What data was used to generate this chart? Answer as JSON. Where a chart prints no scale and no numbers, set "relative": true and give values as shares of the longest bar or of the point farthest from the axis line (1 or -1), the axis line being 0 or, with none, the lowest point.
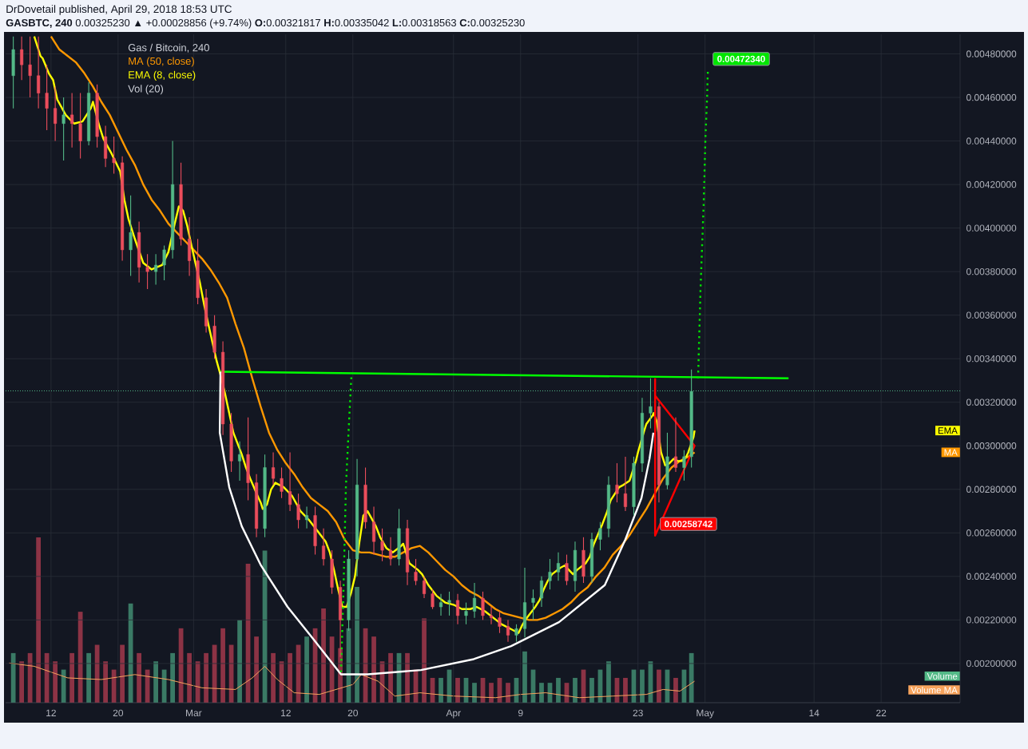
{
  "chart_data": [
    {
      "type": "candlestick",
      "title": "DrDovetail published, April 29, 2018 18:53 UTC",
      "subtitle": "**GASBTC, 240** 0.00325230 ▲ +0.00028856 (+9.74%) **O:**0.00321817 **H:**0.00335042 **L:**0.00318563 **C:**0.00325230",
      "legend_title": "Gas / Bitcoin, 240",
      "legend": "top left",
      "grid": true,
      "x": [
        "2018-02-07T12:00",
        "2018-02-08T12:00",
        "2018-02-09T12:00",
        "2018-02-10T12:00",
        "2018-02-11T12:00",
        "2018-02-12T12:00",
        "2018-02-13T12:00",
        "2018-02-14T12:00",
        "2018-02-15T12:00",
        "2018-02-16T12:00",
        "2018-02-17T12:00",
        "2018-02-18T12:00",
        "2018-02-19T12:00",
        "2018-02-20T12:00",
        "2018-02-21T12:00",
        "2018-02-22T12:00",
        "2018-02-23T12:00",
        "2018-02-24T12:00",
        "2018-02-25T12:00",
        "2018-02-26T12:00",
        "2018-02-27T12:00",
        "2018-02-28T12:00",
        "2018-03-01T12:00",
        "2018-03-02T12:00",
        "2018-03-03T12:00",
        "2018-03-04T12:00",
        "2018-03-05T12:00",
        "2018-03-06T12:00",
        "2018-03-07T12:00",
        "2018-03-08T12:00",
        "2018-03-09T12:00",
        "2018-03-10T12:00",
        "2018-03-11T12:00",
        "2018-03-12T12:00",
        "2018-03-13T12:00",
        "2018-03-14T12:00",
        "2018-03-15T12:00",
        "2018-03-16T12:00",
        "2018-03-17T12:00",
        "2018-03-18T12:00",
        "2018-03-19T12:00",
        "2018-03-20T12:00",
        "2018-03-21T12:00",
        "2018-03-22T12:00",
        "2018-03-23T12:00",
        "2018-03-24T12:00",
        "2018-03-25T12:00",
        "2018-03-26T12:00",
        "2018-03-27T12:00",
        "2018-03-28T12:00",
        "2018-03-29T12:00",
        "2018-03-30T12:00",
        "2018-03-31T12:00",
        "2018-04-01T12:00",
        "2018-04-02T12:00",
        "2018-04-03T12:00",
        "2018-04-04T12:00",
        "2018-04-05T12:00",
        "2018-04-06T12:00",
        "2018-04-07T12:00",
        "2018-04-08T12:00",
        "2018-04-09T12:00",
        "2018-04-10T12:00",
        "2018-04-11T12:00",
        "2018-04-12T12:00",
        "2018-04-13T12:00",
        "2018-04-14T12:00",
        "2018-04-15T12:00",
        "2018-04-16T12:00",
        "2018-04-17T12:00",
        "2018-04-18T12:00",
        "2018-04-19T12:00",
        "2018-04-20T12:00",
        "2018-04-21T12:00",
        "2018-04-22T12:00",
        "2018-04-23T12:00",
        "2018-04-24T12:00",
        "2018-04-25T12:00",
        "2018-04-26T12:00",
        "2018-04-27T12:00",
        "2018-04-28T12:00",
        "2018-04-29T09:00"
      ],
      "ohlc": [
        [
          0.0047,
          0.00488,
          0.00455,
          0.00482
        ],
        [
          0.00482,
          0.00488,
          0.00468,
          0.00475
        ],
        [
          0.00475,
          0.00488,
          0.0046,
          0.0047
        ],
        [
          0.0047,
          0.00488,
          0.00455,
          0.00462
        ],
        [
          0.00462,
          0.00475,
          0.00445,
          0.00455
        ],
        [
          0.00455,
          0.00465,
          0.0044,
          0.00448
        ],
        [
          0.00448,
          0.0046,
          0.00431,
          0.00452
        ],
        [
          0.00452,
          0.00462,
          0.00437,
          0.00448
        ],
        [
          0.00448,
          0.00462,
          0.00432,
          0.0044
        ],
        [
          0.0044,
          0.00467,
          0.00438,
          0.00462
        ],
        [
          0.00462,
          0.00466,
          0.00437,
          0.00442
        ],
        [
          0.00442,
          0.00447,
          0.00428,
          0.00432
        ],
        [
          0.00432,
          0.00442,
          0.00425,
          0.0043
        ],
        [
          0.0043,
          0.00433,
          0.00385,
          0.0039
        ],
        [
          0.0039,
          0.00415,
          0.00378,
          0.00398
        ],
        [
          0.00398,
          0.00403,
          0.00375,
          0.00382
        ],
        [
          0.00382,
          0.00388,
          0.00372,
          0.0038
        ],
        [
          0.0038,
          0.00388,
          0.00374,
          0.00383
        ],
        [
          0.00383,
          0.00392,
          0.00376,
          0.0039
        ],
        [
          0.0039,
          0.0044,
          0.00386,
          0.0042
        ],
        [
          0.0042,
          0.0043,
          0.00392,
          0.00395
        ],
        [
          0.00395,
          0.00405,
          0.00378,
          0.00385
        ],
        [
          0.00385,
          0.00395,
          0.00365,
          0.00368
        ],
        [
          0.00368,
          0.00372,
          0.00352,
          0.00355
        ],
        [
          0.00355,
          0.0036,
          0.0034,
          0.00343
        ],
        [
          0.00343,
          0.00348,
          0.00305,
          0.0031
        ],
        [
          0.0031,
          0.00315,
          0.00288,
          0.00293
        ],
        [
          0.00293,
          0.00302,
          0.00284,
          0.00296
        ],
        [
          0.00296,
          0.00313,
          0.00275,
          0.00283
        ],
        [
          0.00283,
          0.00287,
          0.00258,
          0.00262
        ],
        [
          0.00262,
          0.00296,
          0.00258,
          0.0029
        ],
        [
          0.0029,
          0.00297,
          0.00282,
          0.00285
        ],
        [
          0.00285,
          0.0029,
          0.00276,
          0.00279
        ],
        [
          0.00279,
          0.00297,
          0.0027,
          0.00273
        ],
        [
          0.00273,
          0.00278,
          0.00262,
          0.00266
        ],
        [
          0.00266,
          0.00272,
          0.00262,
          0.00268
        ],
        [
          0.00268,
          0.00272,
          0.0025,
          0.00254
        ],
        [
          0.00254,
          0.00262,
          0.00245,
          0.00248
        ],
        [
          0.00248,
          0.00252,
          0.00232,
          0.00235
        ],
        [
          0.00235,
          0.00238,
          0.00203,
          0.0022
        ],
        [
          0.0022,
          0.00252,
          0.00215,
          0.00248
        ],
        [
          0.00248,
          0.00294,
          0.0024,
          0.00282
        ],
        [
          0.00282,
          0.0029,
          0.00262,
          0.00265
        ],
        [
          0.00265,
          0.00272,
          0.0025,
          0.00256
        ],
        [
          0.00256,
          0.00262,
          0.00247,
          0.00252
        ],
        [
          0.00252,
          0.00258,
          0.00245,
          0.00248
        ],
        [
          0.00248,
          0.00271,
          0.00245,
          0.00262
        ],
        [
          0.00262,
          0.00266,
          0.00236,
          0.00242
        ],
        [
          0.00242,
          0.00248,
          0.00236,
          0.00238
        ],
        [
          0.00238,
          0.0024,
          0.0023,
          0.00232
        ],
        [
          0.00232,
          0.00234,
          0.00225,
          0.00226
        ],
        [
          0.00226,
          0.00232,
          0.00222,
          0.00228
        ],
        [
          0.00228,
          0.00233,
          0.00222,
          0.00229
        ],
        [
          0.00229,
          0.00232,
          0.00218,
          0.00222
        ],
        [
          0.00222,
          0.00228,
          0.00218,
          0.00224
        ],
        [
          0.00224,
          0.00237,
          0.00221,
          0.0023
        ],
        [
          0.0023,
          0.00233,
          0.0022,
          0.00222
        ],
        [
          0.00222,
          0.00226,
          0.00218,
          0.00221
        ],
        [
          0.00221,
          0.00224,
          0.00214,
          0.00217
        ],
        [
          0.00217,
          0.0022,
          0.0021,
          0.00213
        ],
        [
          0.00213,
          0.00218,
          0.0021,
          0.00216
        ],
        [
          0.00216,
          0.00244,
          0.00212,
          0.00228
        ],
        [
          0.00228,
          0.00234,
          0.0022,
          0.0023
        ],
        [
          0.0023,
          0.0024,
          0.00226,
          0.00238
        ],
        [
          0.00238,
          0.00248,
          0.00234,
          0.00242
        ],
        [
          0.00242,
          0.00251,
          0.00238,
          0.00246
        ],
        [
          0.00246,
          0.0025,
          0.00236,
          0.00238
        ],
        [
          0.00238,
          0.00256,
          0.00233,
          0.00252
        ],
        [
          0.00252,
          0.00258,
          0.00237,
          0.0024
        ],
        [
          0.0024,
          0.0026,
          0.00237,
          0.00257
        ],
        [
          0.00257,
          0.00265,
          0.00252,
          0.00262
        ],
        [
          0.00262,
          0.00286,
          0.00258,
          0.00282
        ],
        [
          0.00282,
          0.00292,
          0.00274,
          0.00278
        ],
        [
          0.00278,
          0.00295,
          0.0027,
          0.00272
        ],
        [
          0.00272,
          0.00295,
          0.00268,
          0.00292
        ],
        [
          0.00292,
          0.00322,
          0.00288,
          0.00315
        ],
        [
          0.00315,
          0.00331,
          0.00308,
          0.00318
        ],
        [
          0.00318,
          0.0032,
          0.00274,
          0.00282
        ],
        [
          0.00282,
          0.00306,
          0.0028,
          0.00295
        ],
        [
          0.00295,
          0.00313,
          0.00288,
          0.0029
        ],
        [
          0.0029,
          0.00298,
          0.00284,
          0.00295
        ],
        [
          0.00295,
          0.00335,
          0.0029,
          0.00325
        ]
      ],
      "colors": [
        "#53b987",
        "#eb4d5c",
        "#eb4d5c",
        "#eb4d5c",
        "#eb4d5c",
        "#eb4d5c",
        "#53b987",
        "#eb4d5c",
        "#eb4d5c",
        "#53b987",
        "#eb4d5c",
        "#eb4d5c",
        "#eb4d5c",
        "#eb4d5c",
        "#53b987",
        "#eb4d5c",
        "#eb4d5c",
        "#53b987",
        "#53b987",
        "#53b987",
        "#eb4d5c",
        "#eb4d5c",
        "#eb4d5c",
        "#eb4d5c",
        "#eb4d5c",
        "#eb4d5c",
        "#eb4d5c",
        "#53b987",
        "#eb4d5c",
        "#eb4d5c",
        "#53b987",
        "#eb4d5c",
        "#eb4d5c",
        "#eb4d5c",
        "#eb4d5c",
        "#53b987",
        "#eb4d5c",
        "#eb4d5c",
        "#eb4d5c",
        "#eb4d5c",
        "#53b987",
        "#53b987",
        "#eb4d5c",
        "#eb4d5c",
        "#eb4d5c",
        "#eb4d5c",
        "#53b987",
        "#eb4d5c",
        "#eb4d5c",
        "#eb4d5c",
        "#eb4d5c",
        "#53b987",
        "#53b987",
        "#eb4d5c",
        "#53b987",
        "#53b987",
        "#eb4d5c",
        "#eb4d5c",
        "#eb4d5c",
        "#eb4d5c",
        "#53b987",
        "#53b987",
        "#53b987",
        "#53b987",
        "#53b987",
        "#53b987",
        "#eb4d5c",
        "#53b987",
        "#eb4d5c",
        "#53b987",
        "#53b987",
        "#53b987",
        "#eb4d5c",
        "#eb4d5c",
        "#53b987",
        "#53b987",
        "#53b987",
        "#eb4d5c",
        "#53b987",
        "#eb4d5c",
        "#53b987",
        "#53b987"
      ],
      "series": [
        {
          "name": "MA (50, close)",
          "type": "line",
          "color": "#ff9800",
          "x": [
            "2018-02-12T00:00",
            "2018-02-13T00:00",
            "2018-02-14T00:00",
            "2018-02-15T00:00",
            "2018-02-16T00:00",
            "2018-02-17T00:00",
            "2018-02-18T00:00",
            "2018-02-19T00:00",
            "2018-02-20T00:00",
            "2018-02-21T00:00",
            "2018-02-22T00:00",
            "2018-02-23T00:00",
            "2018-02-24T00:00",
            "2018-02-25T00:00",
            "2018-02-26T00:00",
            "2018-02-27T00:00",
            "2018-02-28T00:00",
            "2018-03-01T00:00",
            "2018-03-02T00:00",
            "2018-03-03T00:00",
            "2018-03-04T00:00",
            "2018-03-05T00:00",
            "2018-03-06T00:00",
            "2018-03-07T00:00",
            "2018-03-08T00:00",
            "2018-03-09T00:00",
            "2018-03-10T00:00",
            "2018-03-11T00:00",
            "2018-03-12T00:00",
            "2018-03-13T00:00",
            "2018-03-14T00:00",
            "2018-03-15T00:00",
            "2018-03-16T00:00",
            "2018-03-17T00:00",
            "2018-03-18T00:00",
            "2018-03-19T00:00",
            "2018-03-20T00:00",
            "2018-03-21T00:00",
            "2018-03-22T00:00",
            "2018-03-23T00:00",
            "2018-03-24T00:00",
            "2018-03-25T00:00",
            "2018-03-26T00:00",
            "2018-03-27T00:00",
            "2018-03-28T00:00",
            "2018-03-29T00:00",
            "2018-03-30T00:00",
            "2018-03-31T00:00",
            "2018-04-01T00:00",
            "2018-04-02T00:00",
            "2018-04-03T00:00",
            "2018-04-04T00:00",
            "2018-04-05T00:00",
            "2018-04-06T00:00",
            "2018-04-07T00:00",
            "2018-04-08T00:00",
            "2018-04-09T00:00",
            "2018-04-10T00:00",
            "2018-04-11T00:00",
            "2018-04-12T00:00",
            "2018-04-13T00:00",
            "2018-04-14T00:00",
            "2018-04-15T00:00",
            "2018-04-16T00:00",
            "2018-04-17T00:00",
            "2018-04-18T00:00",
            "2018-04-19T00:00",
            "2018-04-20T00:00",
            "2018-04-21T00:00",
            "2018-04-22T00:00",
            "2018-04-23T00:00",
            "2018-04-24T00:00",
            "2018-04-25T00:00",
            "2018-04-26T00:00",
            "2018-04-27T00:00",
            "2018-04-28T00:00",
            "2018-04-29T00:00",
            "2018-04-29T18:00"
          ],
          "values": [
            0.00488,
            0.00482,
            0.00479,
            0.00476,
            0.00471,
            0.00465,
            0.00458,
            0.00452,
            0.00444,
            0.00436,
            0.00429,
            0.0042,
            0.00413,
            0.00408,
            0.00402,
            0.00398,
            0.00394,
            0.0039,
            0.00386,
            0.00381,
            0.00375,
            0.00368,
            0.00356,
            0.00345,
            0.00331,
            0.00318,
            0.00306,
            0.00298,
            0.00292,
            0.00287,
            0.00281,
            0.00276,
            0.00273,
            0.0027,
            0.00265,
            0.00257,
            0.00252,
            0.00251,
            0.00251,
            0.0025,
            0.00249,
            0.00249,
            0.00251,
            0.00253,
            0.00254,
            0.00251,
            0.00247,
            0.00243,
            0.0024,
            0.00236,
            0.00233,
            0.00231,
            0.00228,
            0.00225,
            0.00223,
            0.00222,
            0.00221,
            0.0022,
            0.0022,
            0.00221,
            0.00223,
            0.00225,
            0.00228,
            0.00232,
            0.00235,
            0.0024,
            0.00244,
            0.0025,
            0.00254,
            0.00259,
            0.00265,
            0.00271,
            0.00278,
            0.00285,
            0.0029,
            0.00293,
            0.00295,
            0.00297
          ]
        },
        {
          "name": "EMA (8, close)",
          "type": "line",
          "color": "#ffff00",
          "x": [
            "2018-02-10T00:00",
            "2018-02-10T18:00",
            "2018-02-11T00:00",
            "2018-02-11T18:00",
            "2018-02-12T06:00",
            "2018-02-12T18:00",
            "2018-02-13T18:00",
            "2018-02-14T18:00",
            "2018-02-15T18:00",
            "2018-02-16T18:00",
            "2018-02-17T00:00",
            "2018-02-17T18:00",
            "2018-02-18T06:00",
            "2018-02-19T06:00",
            "2018-02-20T06:00",
            "2018-02-20T18:00",
            "2018-02-21T06:00",
            "2018-02-22T00:00",
            "2018-02-23T00:00",
            "2018-02-24T00:00",
            "2018-02-25T06:00",
            "2018-02-26T00:00",
            "2018-02-26T18:00",
            "2018-02-27T06:00",
            "2018-02-27T18:00",
            "2018-02-28T06:00",
            "2018-02-28T18:00",
            "2018-03-01T18:00",
            "2018-03-02T06:00",
            "2018-03-02T18:00",
            "2018-03-03T18:00",
            "2018-03-04T06:00",
            "2018-03-04T18:00",
            "2018-03-05T06:00",
            "2018-03-05T18:00",
            "2018-03-06T18:00",
            "2018-03-07T06:00",
            "2018-03-07T18:00",
            "2018-03-08T18:00",
            "2018-03-09T00:00",
            "2018-03-09T06:00",
            "2018-03-09T18:00",
            "2018-03-10T06:00",
            "2018-03-10T18:00",
            "2018-03-11T18:00",
            "2018-03-12T18:00",
            "2018-03-13T18:00",
            "2018-03-14T18:00",
            "2018-03-15T18:00",
            "2018-03-16T18:00",
            "2018-03-17T06:00",
            "2018-03-17T18:00",
            "2018-03-18T06:00",
            "2018-03-18T18:00",
            "2018-03-19T06:00",
            "2018-03-19T18:00",
            "2018-03-20T06:00",
            "2018-03-20T18:00",
            "2018-03-21T06:00",
            "2018-03-21T18:00",
            "2018-03-22T18:00",
            "2018-03-23T06:00",
            "2018-03-24T00:00",
            "2018-03-24T18:00",
            "2018-03-25T18:00",
            "2018-03-26T00:00",
            "2018-03-26T18:00",
            "2018-03-27T18:00",
            "2018-03-28T06:00",
            "2018-03-29T00:00",
            "2018-03-30T00:00",
            "2018-03-31T00:00",
            "2018-04-01T00:00",
            "2018-04-02T00:00",
            "2018-04-03T00:00",
            "2018-04-03T18:00",
            "2018-04-04T18:00",
            "2018-04-05T18:00",
            "2018-04-06T18:00",
            "2018-04-07T18:00",
            "2018-04-08T06:00",
            "2018-04-08T18:00",
            "2018-04-09T06:00",
            "2018-04-09T18:00",
            "2018-04-10T18:00",
            "2018-04-11T06:00",
            "2018-04-11T18:00",
            "2018-04-12T06:00",
            "2018-04-12T18:00",
            "2018-04-13T18:00",
            "2018-04-14T06:00",
            "2018-04-14T18:00",
            "2018-04-15T06:00",
            "2018-04-15T18:00",
            "2018-04-16T18:00",
            "2018-04-17T06:00",
            "2018-04-17T18:00",
            "2018-04-18T18:00",
            "2018-04-19T06:00",
            "2018-04-19T18:00",
            "2018-04-20T18:00",
            "2018-04-21T06:00",
            "2018-04-22T00:00",
            "2018-04-22T18:00",
            "2018-04-23T00:00",
            "2018-04-23T18:00",
            "2018-04-24T00:00",
            "2018-04-24T18:00",
            "2018-04-24T21:00",
            "2018-04-25T06:00",
            "2018-04-25T18:00",
            "2018-04-26T06:00",
            "2018-04-26T18:00",
            "2018-04-27T06:00",
            "2018-04-27T18:00",
            "2018-04-28T06:00",
            "2018-04-28T18:00",
            "2018-04-29T00:00",
            "2018-04-29T15:00",
            "2018-04-29T18:00"
          ],
          "values": [
            0.00488,
            0.00479,
            0.00478,
            0.00471,
            0.00468,
            0.00459,
            0.00452,
            0.00448,
            0.00449,
            0.00455,
            0.00458,
            0.00447,
            0.00441,
            0.00434,
            0.00426,
            0.00413,
            0.00404,
            0.00395,
            0.00384,
            0.00381,
            0.00383,
            0.00389,
            0.00402,
            0.0041,
            0.00408,
            0.00401,
            0.00392,
            0.00375,
            0.00365,
            0.00356,
            0.00339,
            0.00332,
            0.00324,
            0.00315,
            0.00306,
            0.00296,
            0.0029,
            0.00285,
            0.00276,
            0.00274,
            0.00271,
            0.00273,
            0.0028,
            0.00283,
            0.00281,
            0.00277,
            0.0027,
            0.00266,
            0.00261,
            0.00256,
            0.00251,
            0.00243,
            0.00234,
            0.00226,
            0.00226,
            0.00232,
            0.0024,
            0.00255,
            0.00268,
            0.0027,
            0.00263,
            0.00258,
            0.00253,
            0.00251,
            0.00254,
            0.00255,
            0.00246,
            0.00243,
            0.00241,
            0.00236,
            0.00231,
            0.00228,
            0.00227,
            0.00225,
            0.00225,
            0.00226,
            0.00224,
            0.00221,
            0.00218,
            0.00216,
            0.00215,
            0.00214,
            0.00218,
            0.00221,
            0.00226,
            0.00229,
            0.00234,
            0.00238,
            0.00241,
            0.00244,
            0.00245,
            0.00243,
            0.00241,
            0.00243,
            0.00246,
            0.00249,
            0.00255,
            0.00264,
            0.00269,
            0.00275,
            0.00281,
            0.00282,
            0.00284,
            0.00293,
            0.00297,
            0.00307,
            0.0031,
            0.00314,
            0.00315,
            0.00311,
            0.00297,
            0.00291,
            0.00292,
            0.00294,
            0.00293,
            0.00293,
            0.00295,
            0.00297,
            0.00304,
            0.00307
          ]
        },
        {
          "type": "line",
          "color": "#00ff00",
          "x": [
            "2018-03-04T05:00",
            "2018-05-10T23:00"
          ],
          "values": [
            0.00334,
            0.00331
          ]
        },
        {
          "type": "line",
          "color": "#ffffff",
          "x": [
            "2018-03-04T05:00",
            "2018-03-04T03:00",
            "2018-03-05T06:00",
            "2018-03-06T18:00",
            "2018-03-09T01:00",
            "2018-03-12T05:00",
            "2018-03-15T08:00",
            "2018-03-18T14:00",
            "2018-03-21T18:00",
            "2018-03-28T03:00",
            "2018-04-03T10:00",
            "2018-04-07T21:00",
            "2018-04-13T14:00",
            "2018-04-19T01:00",
            "2018-04-21T12:00",
            "2018-04-23T10:00",
            "2018-04-24T09:00",
            "2018-04-24T20:00"
          ],
          "values": [
            0.00334,
            0.00306,
            0.00281,
            0.00263,
            0.00245,
            0.00226,
            0.00211,
            0.00195,
            0.00195,
            0.00197,
            0.00202,
            0.00208,
            0.00219,
            0.00236,
            0.00257,
            0.00276,
            0.00294,
            0.00306
          ]
        },
        {
          "type": "line",
          "color": "#00e600",
          "line_style": "dotted",
          "x": [
            "2018-03-18T14:00",
            "2018-03-18T21:00",
            "2018-03-19T04:00",
            "2018-03-19T13:00",
            "2018-03-19T20:00"
          ],
          "values": [
            0.00196,
            0.00233,
            0.00281,
            0.00311,
            0.00333
          ]
        },
        {
          "type": "line",
          "color": "#00e600",
          "line_style": "dotted",
          "x": [
            "2018-04-30T04:00",
            "2018-04-30T11:00",
            "2018-04-30T20:00",
            "2018-05-01T01:00",
            "2018-05-01T06:00",
            "2018-05-01T08:00"
          ],
          "values": [
            0.00331,
            0.00372,
            0.00411,
            0.00441,
            0.00461,
            0.0047234
          ]
        },
        {
          "type": "line",
          "color": "#ff0000",
          "x": [
            "2018-04-25T01:00",
            "2018-04-25T01:00",
            "2018-04-29T18:00",
            "2018-04-25T01:00"
          ],
          "values": [
            0.00331,
            0.00258742,
            0.003,
            0.00323
          ]
        }
      ],
      "xlim": [
        "2018-02-06T14:00",
        "2018-05-31T10:00"
      ],
      "ylim": [
        0.00182,
        0.00489
      ],
      "xticks": [
        {
          "value": "2018-02-12",
          "label": "12"
        },
        {
          "value": "2018-02-20",
          "label": "20"
        },
        {
          "value": "2018-03-01",
          "label": "Mar"
        },
        {
          "value": "2018-03-12",
          "label": "12"
        },
        {
          "value": "2018-03-20",
          "label": "20"
        },
        {
          "value": "2018-04-01",
          "label": "Apr"
        },
        {
          "value": "2018-04-09",
          "label": "9"
        },
        {
          "value": "2018-04-23",
          "label": "23"
        },
        {
          "value": "2018-05-01",
          "label": "May"
        },
        {
          "value": "2018-05-14",
          "label": "14"
        },
        {
          "value": "2018-05-22",
          "label": "22"
        }
      ],
      "yticks": [
        {
          "value": 0.002,
          "label": "0.00200000"
        },
        {
          "value": 0.0022,
          "label": "0.00220000"
        },
        {
          "value": 0.0024,
          "label": "0.00240000"
        },
        {
          "value": 0.0026,
          "label": "0.00260000"
        },
        {
          "value": 0.0028,
          "label": "0.00280000"
        },
        {
          "value": 0.003,
          "label": "0.00300000"
        },
        {
          "value": 0.0032,
          "label": "0.00320000"
        },
        {
          "value": 0.0034,
          "label": "0.00340000"
        },
        {
          "value": 0.0036,
          "label": "0.00360000"
        },
        {
          "value": 0.0038,
          "label": "0.00380000"
        },
        {
          "value": 0.004,
          "label": "0.00400000"
        },
        {
          "value": 0.0042,
          "label": "0.00420000"
        },
        {
          "value": 0.0044,
          "label": "0.00440000"
        },
        {
          "value": 0.0046,
          "label": "0.00460000"
        },
        {
          "value": 0.0048,
          "label": "0.00480000"
        }
      ],
      "ref_lines": [
        {
          "axis": "y",
          "value": 0.0032523,
          "color": "#53b987",
          "line_style": "dotted"
        }
      ],
      "annotations": [
        {
          "text": "0.00472340",
          "x": "2018-05-01T08:00",
          "y": 0.0047234
        },
        {
          "text": "0.00258742",
          "x": "2018-04-25T01:00",
          "y": 0.00258742
        },
        {
          "text": "EMA",
          "y": 0.00307
        },
        {
          "text": "MA",
          "y": 0.00297
        }
      ]
    },
    {
      "type": "bar",
      "title": "Vol (20)",
      "relative": true,
      "legend": "bottom right",
      "tick_labels": false,
      "xlim": [
        "2018-02-06T14:00",
        "2018-05-31T10:00"
      ],
      "x": [
        "2018-02-07T12:00",
        "2018-02-08T12:00",
        "2018-02-09T12:00",
        "2018-02-10T12:00",
        "2018-02-11T12:00",
        "2018-02-12T12:00",
        "2018-02-13T12:00",
        "2018-02-14T12:00",
        "2018-02-15T12:00",
        "2018-02-16T12:00",
        "2018-02-17T12:00",
        "2018-02-18T12:00",
        "2018-02-19T12:00",
        "2018-02-20T12:00",
        "2018-02-21T12:00",
        "2018-02-22T12:00",
        "2018-02-23T12:00",
        "2018-02-24T12:00",
        "2018-02-25T12:00",
        "2018-02-26T12:00",
        "2018-02-27T12:00",
        "2018-02-28T12:00",
        "2018-03-01T12:00",
        "2018-03-02T12:00",
        "2018-03-03T12:00",
        "2018-03-04T12:00",
        "2018-03-05T12:00",
        "2018-03-06T12:00",
        "2018-03-07T12:00",
        "2018-03-08T12:00",
        "2018-03-09T12:00",
        "2018-03-10T12:00",
        "2018-03-11T12:00",
        "2018-03-12T12:00",
        "2018-03-13T12:00",
        "2018-03-14T12:00",
        "2018-03-15T12:00",
        "2018-03-16T12:00",
        "2018-03-17T12:00",
        "2018-03-18T12:00",
        "2018-03-19T12:00",
        "2018-03-20T12:00",
        "2018-03-21T12:00",
        "2018-03-22T12:00",
        "2018-03-23T12:00",
        "2018-03-24T12:00",
        "2018-03-25T12:00",
        "2018-03-26T12:00",
        "2018-03-27T12:00",
        "2018-03-28T12:00",
        "2018-03-29T12:00",
        "2018-03-30T12:00",
        "2018-03-31T12:00",
        "2018-04-01T12:00",
        "2018-04-02T12:00",
        "2018-04-03T12:00",
        "2018-04-04T12:00",
        "2018-04-05T12:00",
        "2018-04-06T12:00",
        "2018-04-07T12:00",
        "2018-04-08T12:00",
        "2018-04-09T12:00",
        "2018-04-10T12:00",
        "2018-04-11T12:00",
        "2018-04-12T12:00",
        "2018-04-13T12:00",
        "2018-04-14T12:00",
        "2018-04-15T12:00",
        "2018-04-16T12:00",
        "2018-04-17T12:00",
        "2018-04-18T12:00",
        "2018-04-19T12:00",
        "2018-04-20T12:00",
        "2018-04-21T12:00",
        "2018-04-22T12:00",
        "2018-04-23T12:00",
        "2018-04-24T12:00",
        "2018-04-25T12:00",
        "2018-04-26T12:00",
        "2018-04-27T12:00",
        "2018-04-28T12:00",
        "2018-04-29T09:00"
      ],
      "series": [
        {
          "name": "Volume",
          "color": "#53b987",
          "colors": [
            "#3a7a65",
            "#8c3345",
            "#8c3345",
            "#8c3345",
            "#8c3345",
            "#8c3345",
            "#3a7a65",
            "#8c3345",
            "#8c3345",
            "#3a7a65",
            "#8c3345",
            "#8c3345",
            "#8c3345",
            "#8c3345",
            "#3a7a65",
            "#8c3345",
            "#8c3345",
            "#3a7a65",
            "#3a7a65",
            "#3a7a65",
            "#8c3345",
            "#8c3345",
            "#8c3345",
            "#8c3345",
            "#8c3345",
            "#8c3345",
            "#8c3345",
            "#3a7a65",
            "#8c3345",
            "#8c3345",
            "#3a7a65",
            "#8c3345",
            "#8c3345",
            "#8c3345",
            "#8c3345",
            "#3a7a65",
            "#8c3345",
            "#8c3345",
            "#8c3345",
            "#8c3345",
            "#3a7a65",
            "#3a7a65",
            "#8c3345",
            "#8c3345",
            "#8c3345",
            "#8c3345",
            "#3a7a65",
            "#8c3345",
            "#8c3345",
            "#8c3345",
            "#8c3345",
            "#3a7a65",
            "#3a7a65",
            "#8c3345",
            "#3a7a65",
            "#3a7a65",
            "#8c3345",
            "#8c3345",
            "#8c3345",
            "#8c3345",
            "#3a7a65",
            "#3a7a65",
            "#3a7a65",
            "#3a7a65",
            "#3a7a65",
            "#3a7a65",
            "#8c3345",
            "#3a7a65",
            "#8c3345",
            "#3a7a65",
            "#3a7a65",
            "#3a7a65",
            "#8c3345",
            "#8c3345",
            "#3a7a65",
            "#3a7a65",
            "#3a7a65",
            "#8c3345",
            "#3a7a65",
            "#8c3345",
            "#3a7a65",
            "#3a7a65"
          ],
          "values": [
            0.3,
            0.25,
            0.3,
            1.0,
            0.3,
            0.25,
            0.2,
            0.3,
            0.55,
            0.3,
            0.35,
            0.25,
            0.2,
            0.35,
            0.6,
            0.3,
            0.2,
            0.25,
            0.2,
            0.3,
            0.45,
            0.3,
            0.25,
            0.3,
            0.35,
            0.45,
            0.35,
            0.5,
            0.84,
            0.4,
            0.92,
            0.3,
            0.25,
            0.3,
            0.35,
            0.4,
            0.45,
            0.57,
            0.4,
            0.33,
            0.45,
            0.7,
            0.45,
            0.4,
            0.25,
            0.3,
            0.3,
            0.3,
            0.2,
            0.51,
            0.15,
            0.15,
            0.2,
            0.15,
            0.15,
            0.12,
            0.15,
            0.12,
            0.15,
            0.12,
            0.15,
            0.31,
            0.2,
            0.12,
            0.12,
            0.15,
            0.12,
            0.15,
            0.2,
            0.15,
            0.2,
            0.25,
            0.15,
            0.15,
            0.2,
            0.2,
            0.25,
            0.2,
            0.2,
            0.15,
            0.2,
            0.3
          ]
        },
        {
          "name": "Volume MA",
          "type": "line",
          "color": "#f7a35c",
          "x": [
            "2018-02-07T00:00",
            "2018-02-10T00:00",
            "2018-02-14T00:00",
            "2018-02-18T00:00",
            "2018-02-22T00:00",
            "2018-02-26T00:00",
            "2018-03-02T00:00",
            "2018-03-06T00:00",
            "2018-03-08T00:00",
            "2018-03-09T12:00",
            "2018-03-11T00:00",
            "2018-03-13T00:00",
            "2018-03-16T00:00",
            "2018-03-18T00:00",
            "2018-03-20T00:00",
            "2018-03-21T00:00",
            "2018-03-23T00:00",
            "2018-03-25T00:00",
            "2018-03-28T00:00",
            "2018-04-01T00:00",
            "2018-04-06T00:00",
            "2018-04-09T00:00",
            "2018-04-12T00:00",
            "2018-04-16T00:00",
            "2018-04-20T00:00",
            "2018-04-24T00:00",
            "2018-04-26T00:00",
            "2018-04-28T00:00",
            "2018-04-29T18:00"
          ],
          "values": [
            0.24,
            0.22,
            0.15,
            0.14,
            0.17,
            0.14,
            0.09,
            0.08,
            0.15,
            0.22,
            0.14,
            0.06,
            0.05,
            0.08,
            0.11,
            0.17,
            0.13,
            0.04,
            0.06,
            0.04,
            0.03,
            0.05,
            0.06,
            0.03,
            0.04,
            0.05,
            0.08,
            0.07,
            0.13
          ]
        }
      ]
    }
  ]
}
